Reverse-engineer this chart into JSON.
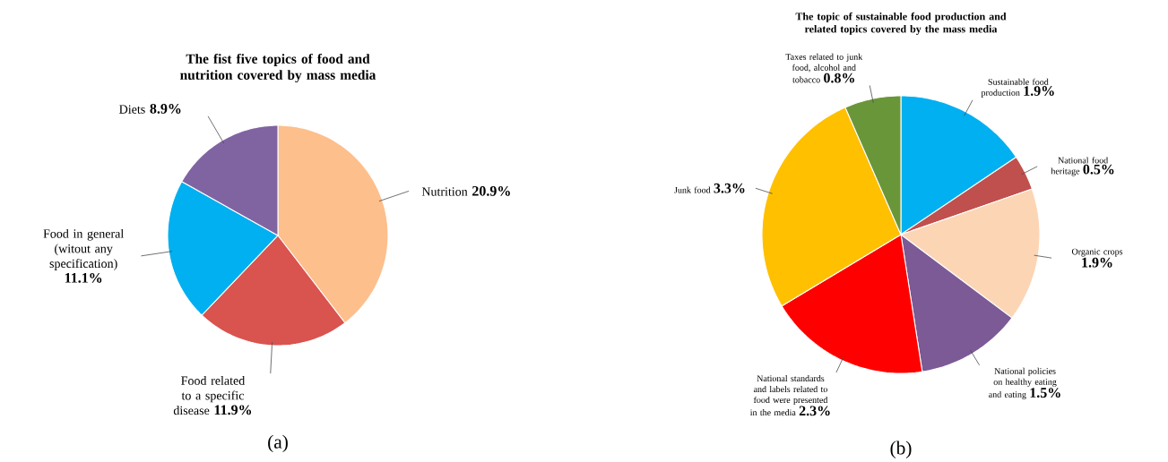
{
  "chart_data": [
    {
      "type": "pie",
      "title": "The fist five topics of food and nutrition covered by mass media",
      "categories": [
        "Nutrition",
        "Food related to a specific disease",
        "Food in general (witout any specification)",
        "Diets"
      ],
      "values": [
        20.9,
        11.9,
        11.1,
        8.9
      ],
      "value_labels": [
        "20.9%",
        "11.9%",
        "11.1%",
        "8.9%"
      ],
      "colors": [
        "#fdbf8c",
        "#d9534f",
        "#00b0f0",
        "#8064a2"
      ],
      "annotations": [
        "(a)"
      ]
    },
    {
      "type": "pie",
      "title": "The topic of sustainable food production and related topics covered by the mass media",
      "categories": [
        "Sustainable food production",
        "National food heritage",
        "Organic crops",
        "National policies on healthy eating and eating",
        "National standards and labels related to food were presented in the media",
        "Junk food",
        "Taxes related to junk food, alcohol and tobacco"
      ],
      "values": [
        1.9,
        0.5,
        1.9,
        1.5,
        2.3,
        3.3,
        0.8
      ],
      "value_labels": [
        "1.9%",
        "0.5%",
        "1.9%",
        "1.5%",
        "2.3%",
        "3.3%",
        "0.8%"
      ],
      "colors": [
        "#00b0f0",
        "#c0504d",
        "#fcd5b5",
        "#7b5a96",
        "#ff0000",
        "#ffc000",
        "#6a963a"
      ],
      "annotations": [
        "(b)"
      ]
    }
  ]
}
